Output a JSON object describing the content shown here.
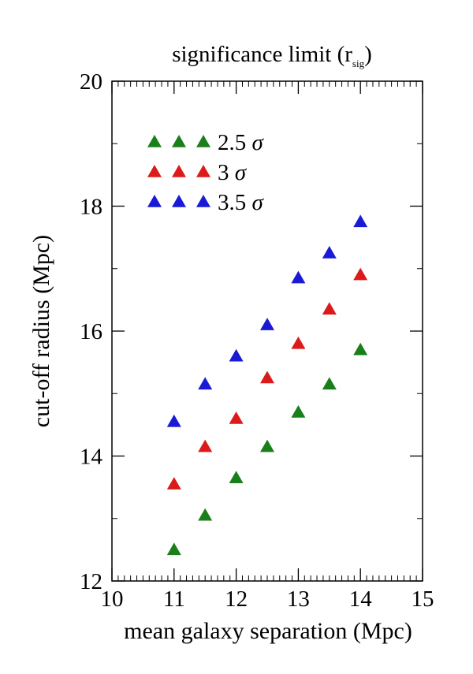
{
  "chart_data": {
    "type": "scatter",
    "title": "significance limit (r",
    "title_subscript": "sig",
    "title_close": ")",
    "xlabel": "mean galaxy separation (Mpc)",
    "ylabel": "cut-off radius (Mpc)",
    "xlim": [
      10,
      15
    ],
    "ylim": [
      12,
      20
    ],
    "x_ticks": [
      10,
      11,
      12,
      13,
      14,
      15
    ],
    "y_ticks": [
      12,
      14,
      16,
      18,
      20
    ],
    "x_tick_labels": [
      "10",
      "11",
      "12",
      "13",
      "14",
      "15"
    ],
    "y_tick_labels": [
      "12",
      "14",
      "16",
      "18",
      "20"
    ],
    "grid": false,
    "legend_position": "top-left",
    "marker": "triangle",
    "series": [
      {
        "name": "2.5",
        "sigma": "σ",
        "color": "#1a7f1a",
        "x": [
          11,
          11.5,
          12,
          12.5,
          13,
          13.5,
          14
        ],
        "y": [
          12.5,
          13.05,
          13.65,
          14.15,
          14.7,
          15.15,
          15.7
        ]
      },
      {
        "name": "3",
        "sigma": "σ",
        "color": "#dd1a1a",
        "x": [
          11,
          11.5,
          12,
          12.5,
          13,
          13.5,
          14
        ],
        "y": [
          13.55,
          14.15,
          14.6,
          15.25,
          15.8,
          16.35,
          16.9
        ]
      },
      {
        "name": "3.5",
        "sigma": "σ",
        "color": "#1a1ad6",
        "x": [
          11,
          11.5,
          12,
          12.5,
          13,
          13.5,
          14
        ],
        "y": [
          14.55,
          15.15,
          15.6,
          16.1,
          16.85,
          17.25,
          17.75
        ]
      }
    ]
  }
}
